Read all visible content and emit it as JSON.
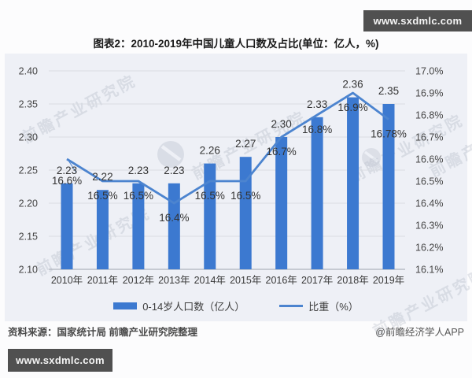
{
  "site_badge": {
    "text": "www.sxdmlc.com"
  },
  "title": "图表2：2010-2019年中国儿童人口数及占比(单位：亿人，%)",
  "chart_data": {
    "type": "bar",
    "categories": [
      "2010年",
      "2011年",
      "2012年",
      "2013年",
      "2014年",
      "2015年",
      "2016年",
      "2017年",
      "2018年",
      "2019年"
    ],
    "series": [
      {
        "name": "0-14岁人口数（亿人）",
        "type": "bar",
        "axis": "left",
        "color": "#3c79d0",
        "values": [
          2.23,
          2.22,
          2.23,
          2.23,
          2.26,
          2.27,
          2.3,
          2.33,
          2.36,
          2.35
        ],
        "labels": [
          "2.23",
          "2.22",
          "2.23",
          "2.23",
          "2.26",
          "2.27",
          "2.30",
          "2.33",
          "2.36",
          "2.35"
        ]
      },
      {
        "name": "比重（%）",
        "type": "line",
        "axis": "right",
        "color": "#4c84cf",
        "values": [
          16.6,
          16.5,
          16.5,
          16.4,
          16.5,
          16.5,
          16.7,
          16.8,
          16.9,
          16.78
        ],
        "labels": [
          "16.6%",
          "16.5%",
          "16.5%",
          "16.4%",
          "16.5%",
          "16.5%",
          "16.7%",
          "16.8%",
          "16.9%",
          "16.78%"
        ]
      }
    ],
    "left_axis": {
      "min": 2.1,
      "max": 2.4,
      "step": 0.05,
      "ticks": [
        "2.40",
        "2.35",
        "2.30",
        "2.25",
        "2.20",
        "2.15",
        "2.10"
      ]
    },
    "right_axis": {
      "min": 16.1,
      "max": 17.0,
      "step": 0.1,
      "ticks": [
        "17.0%",
        "16.9%",
        "16.8%",
        "16.7%",
        "16.6%",
        "16.5%",
        "16.4%",
        "16.3%",
        "16.2%",
        "16.1%"
      ]
    },
    "grid": true,
    "legend_position": "bottom",
    "title": "图表2：2010-2019年中国儿童人口数及占比(单位：亿人，%)"
  },
  "footer": {
    "source": "资料来源：国家统计局 前瞻产业研究院整理",
    "credit": "@前瞻经济学人APP"
  },
  "watermark": {
    "text": "前瞻产业研究院"
  },
  "colors": {
    "bar": "#3c79d0",
    "line": "#4c84cf",
    "badge_bg": "#505050",
    "chart_bg": "#eef0f6",
    "grid": "#d9dbe2",
    "axis_line": "#afb3bc",
    "label_text": "#333333",
    "tick_text": "#454545"
  }
}
